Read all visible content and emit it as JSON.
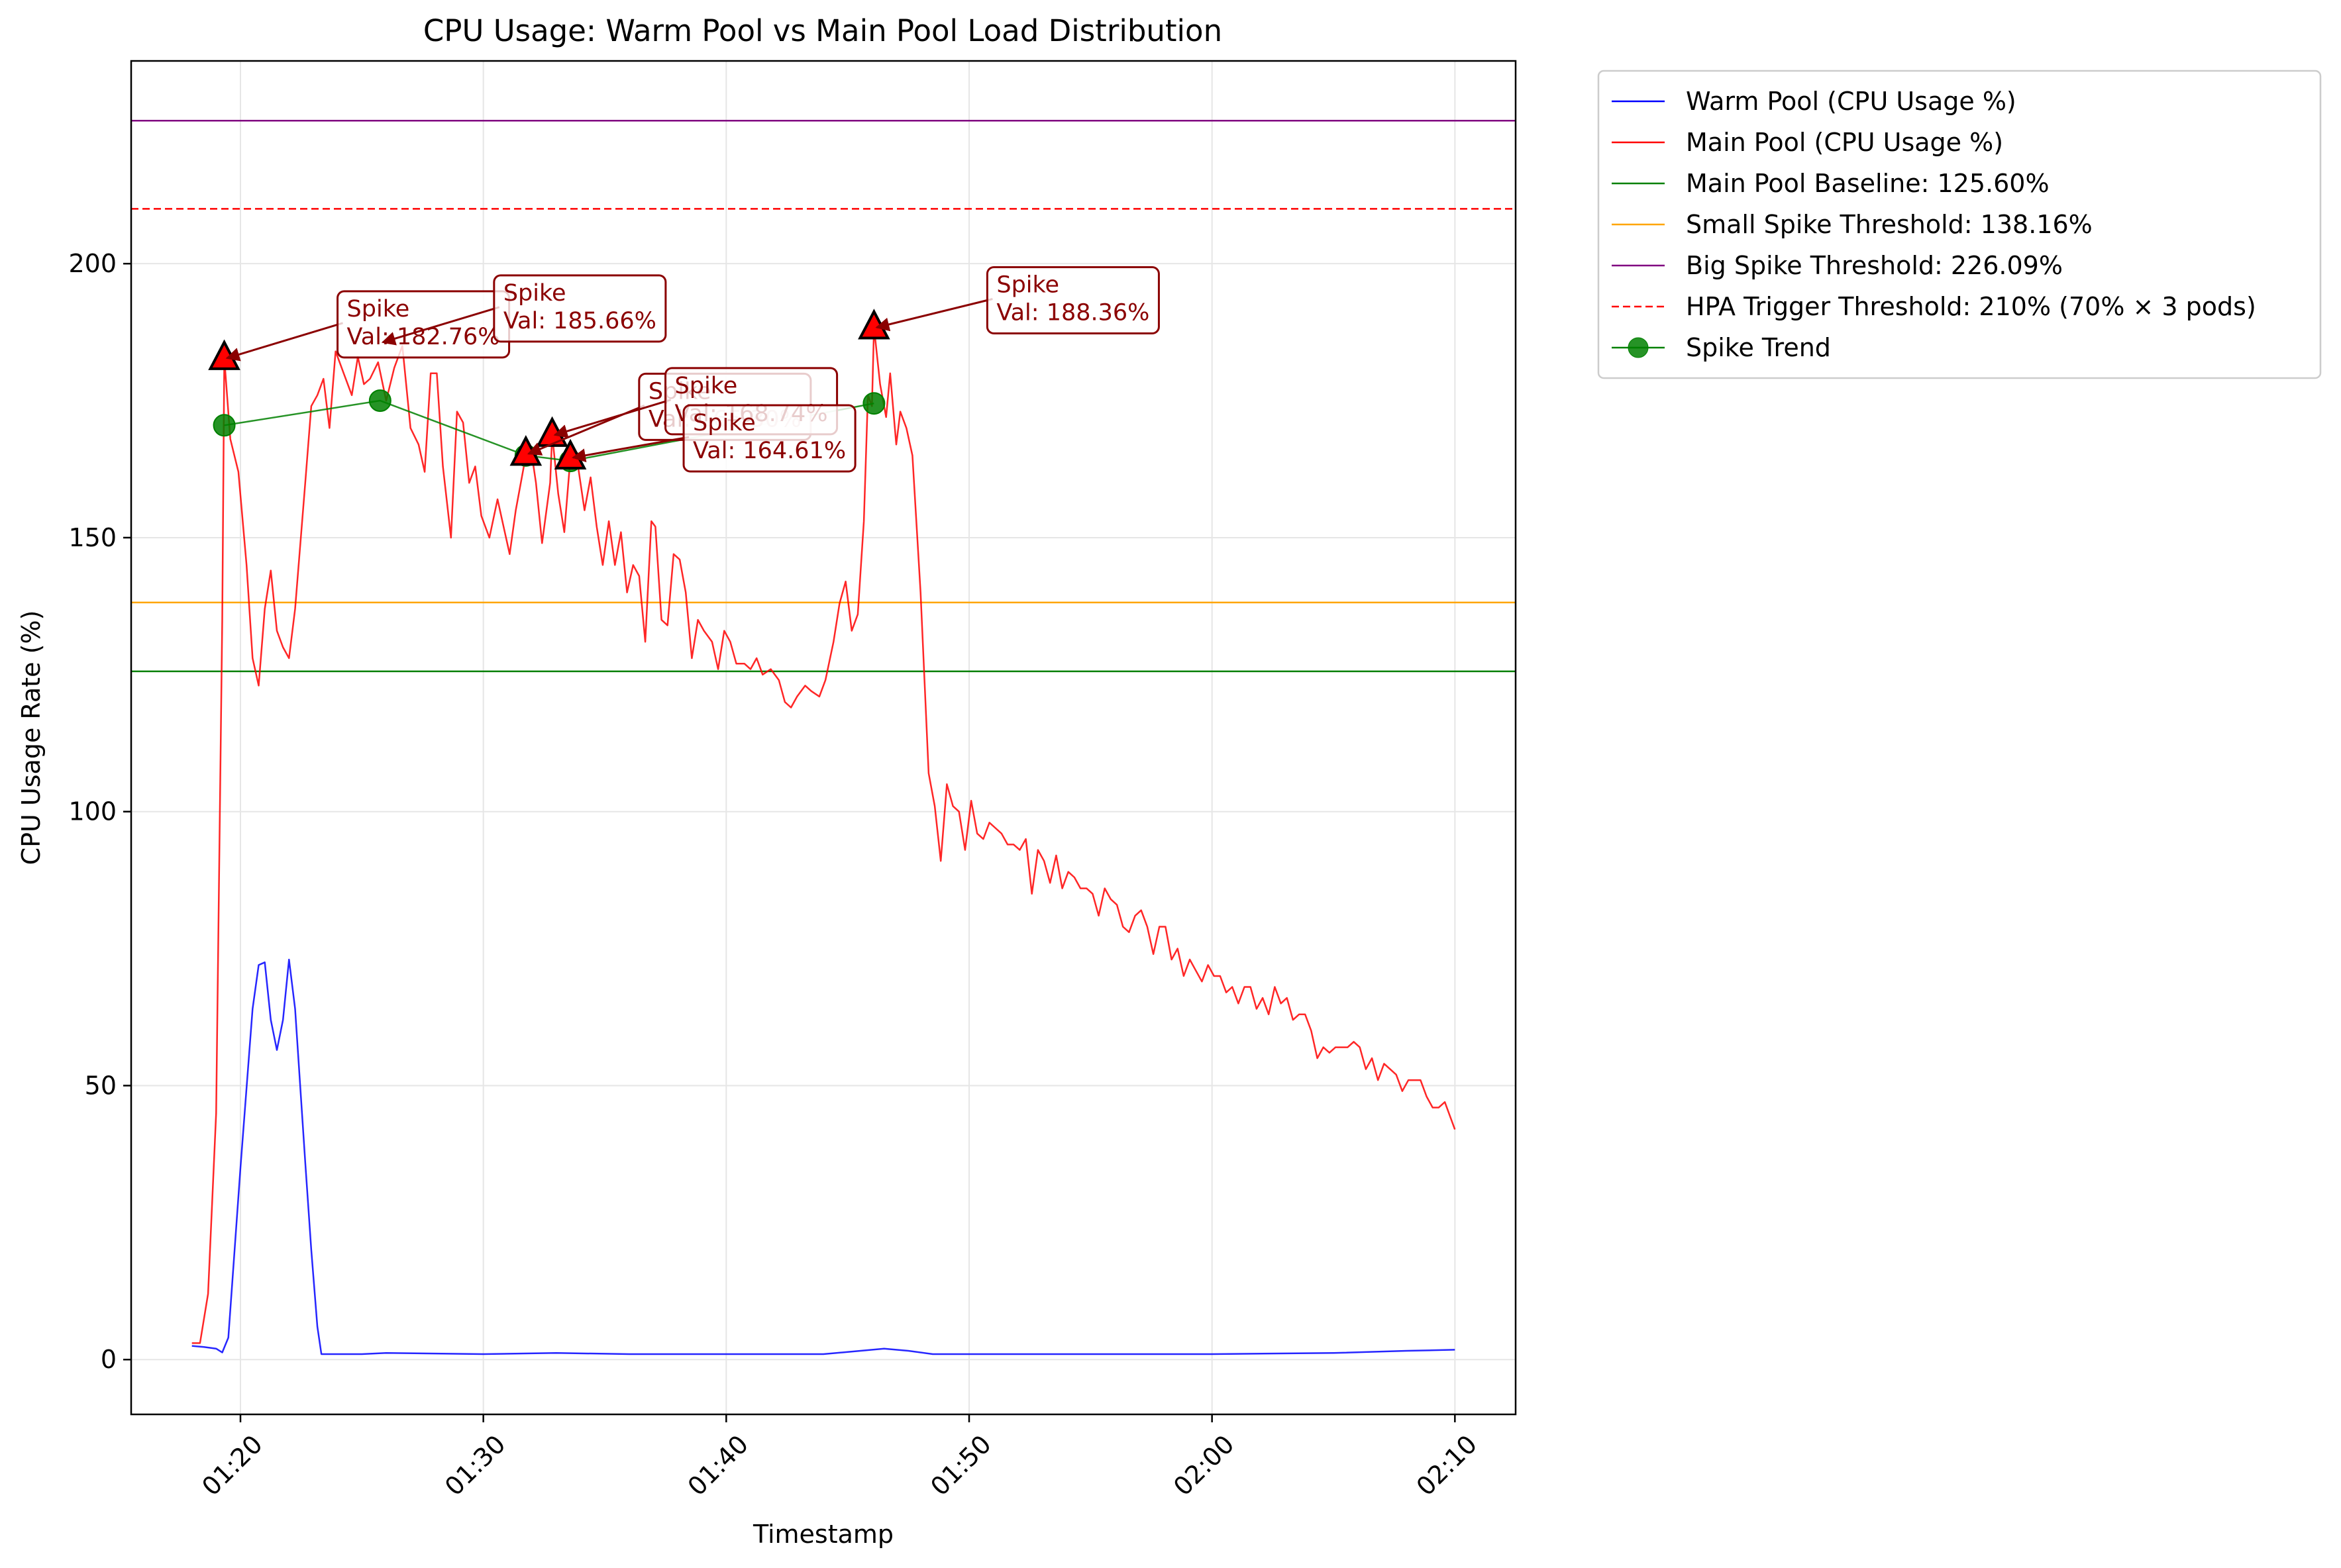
{
  "chart_data": {
    "type": "line",
    "title": "CPU Usage: Warm Pool vs Main Pool Load Distribution",
    "xlabel": "Timestamp",
    "ylabel": "CPU Usage Rate (%)",
    "xlim": [
      "01:15:30",
      "02:12:30"
    ],
    "ylim": [
      -10,
      237
    ],
    "x_ticks": [
      "01:20",
      "01:30",
      "01:40",
      "01:50",
      "02:00",
      "02:10"
    ],
    "y_ticks": [
      0,
      50,
      100,
      150,
      200
    ],
    "grid": true,
    "legend_position": "outside-top-right",
    "series": [
      {
        "name": "Warm Pool (CPU Usage %)",
        "color": "#0000ff",
        "style": "solid",
        "points": [
          [
            "01:18:00",
            2.5
          ],
          [
            "01:18:30",
            2.3
          ],
          [
            "01:19:00",
            2.0
          ],
          [
            "01:19:15",
            1.3
          ],
          [
            "01:19:30",
            4.0
          ],
          [
            "01:20:00",
            35
          ],
          [
            "01:20:30",
            64
          ],
          [
            "01:20:45",
            72
          ],
          [
            "01:21:00",
            72.5
          ],
          [
            "01:21:15",
            62
          ],
          [
            "01:21:30",
            56.5
          ],
          [
            "01:21:45",
            62
          ],
          [
            "01:22:00",
            73
          ],
          [
            "01:22:15",
            64
          ],
          [
            "01:22:40",
            36
          ],
          [
            "01:22:55",
            20
          ],
          [
            "01:23:10",
            6
          ],
          [
            "01:23:20",
            1
          ],
          [
            "01:25:00",
            1
          ],
          [
            "01:26:00",
            1.2
          ],
          [
            "01:30:00",
            1
          ],
          [
            "01:33:00",
            1.2
          ],
          [
            "01:36:00",
            1
          ],
          [
            "01:40:00",
            1
          ],
          [
            "01:44:00",
            1
          ],
          [
            "01:45:00",
            1.4
          ],
          [
            "01:46:30",
            2.0
          ],
          [
            "01:47:30",
            1.6
          ],
          [
            "01:48:30",
            1
          ],
          [
            "01:55:00",
            1
          ],
          [
            "02:00:00",
            1
          ],
          [
            "02:05:00",
            1.2
          ],
          [
            "02:08:00",
            1.6
          ],
          [
            "02:10:00",
            1.8
          ]
        ]
      },
      {
        "name": "Main Pool (CPU Usage %)",
        "color": "#ff0000",
        "style": "solid",
        "points": [
          [
            "01:18:00",
            3
          ],
          [
            "01:18:20",
            3
          ],
          [
            "01:18:40",
            12
          ],
          [
            "01:19:00",
            45
          ],
          [
            "01:19:15",
            135
          ],
          [
            "01:19:20",
            182.76
          ],
          [
            "01:19:35",
            168
          ],
          [
            "01:19:55",
            162
          ],
          [
            "01:20:15",
            145
          ],
          [
            "01:20:30",
            128
          ],
          [
            "01:20:45",
            123
          ],
          [
            "01:21:00",
            137
          ],
          [
            "01:21:15",
            144
          ],
          [
            "01:21:30",
            133
          ],
          [
            "01:21:45",
            130
          ],
          [
            "01:22:00",
            128
          ],
          [
            "01:22:15",
            137
          ],
          [
            "01:22:40",
            160
          ],
          [
            "01:22:55",
            174
          ],
          [
            "01:23:10",
            176
          ],
          [
            "01:23:25",
            179
          ],
          [
            "01:23:40",
            170
          ],
          [
            "01:23:55",
            184
          ],
          [
            "01:24:15",
            180
          ],
          [
            "01:24:35",
            176
          ],
          [
            "01:24:50",
            183
          ],
          [
            "01:25:05",
            178
          ],
          [
            "01:25:20",
            179
          ],
          [
            "01:25:40",
            182
          ],
          [
            "01:26:00",
            175
          ],
          [
            "01:26:20",
            181
          ],
          [
            "01:26:40",
            185
          ],
          [
            "01:27:00",
            170
          ],
          [
            "01:27:20",
            167
          ],
          [
            "01:27:35",
            162
          ],
          [
            "01:27:50",
            180
          ],
          [
            "01:28:05",
            180
          ],
          [
            "01:28:20",
            163
          ],
          [
            "01:28:40",
            150
          ],
          [
            "01:28:55",
            173
          ],
          [
            "01:29:10",
            171
          ],
          [
            "01:29:25",
            160
          ],
          [
            "01:29:40",
            163
          ],
          [
            "01:29:55",
            154
          ],
          [
            "01:30:15",
            150
          ],
          [
            "01:30:35",
            157
          ],
          [
            "01:30:50",
            152
          ],
          [
            "01:31:05",
            147
          ],
          [
            "01:31:20",
            155
          ],
          [
            "01:31:40",
            163
          ],
          [
            "01:32:00",
            165
          ],
          [
            "01:32:10",
            160
          ],
          [
            "01:32:25",
            149
          ],
          [
            "01:32:45",
            160
          ],
          [
            "01:32:50",
            168.74
          ],
          [
            "01:33:05",
            158
          ],
          [
            "01:33:20",
            151
          ],
          [
            "01:33:35",
            164.61
          ],
          [
            "01:33:50",
            165
          ],
          [
            "01:34:10",
            155
          ],
          [
            "01:34:25",
            161
          ],
          [
            "01:34:40",
            152
          ],
          [
            "01:34:55",
            145
          ],
          [
            "01:35:10",
            153
          ],
          [
            "01:35:25",
            145
          ],
          [
            "01:35:40",
            151
          ],
          [
            "01:35:55",
            140
          ],
          [
            "01:36:10",
            145
          ],
          [
            "01:36:25",
            143
          ],
          [
            "01:36:40",
            131
          ],
          [
            "01:36:55",
            153
          ],
          [
            "01:37:05",
            152
          ],
          [
            "01:37:20",
            135
          ],
          [
            "01:37:35",
            134
          ],
          [
            "01:37:50",
            147
          ],
          [
            "01:38:05",
            146
          ],
          [
            "01:38:20",
            140
          ],
          [
            "01:38:35",
            128
          ],
          [
            "01:38:50",
            135
          ],
          [
            "01:39:05",
            133
          ],
          [
            "01:39:25",
            131
          ],
          [
            "01:39:40",
            126
          ],
          [
            "01:39:55",
            133
          ],
          [
            "01:40:10",
            131
          ],
          [
            "01:40:25",
            127
          ],
          [
            "01:40:45",
            127
          ],
          [
            "01:41:00",
            126
          ],
          [
            "01:41:15",
            128
          ],
          [
            "01:41:30",
            125
          ],
          [
            "01:41:50",
            126
          ],
          [
            "01:42:10",
            124
          ],
          [
            "01:42:25",
            120
          ],
          [
            "01:42:40",
            119
          ],
          [
            "01:42:55",
            121
          ],
          [
            "01:43:15",
            123
          ],
          [
            "01:43:30",
            122
          ],
          [
            "01:43:50",
            121
          ],
          [
            "01:44:05",
            124
          ],
          [
            "01:44:25",
            131
          ],
          [
            "01:44:40",
            138
          ],
          [
            "01:44:55",
            142
          ],
          [
            "01:45:10",
            133
          ],
          [
            "01:45:25",
            136
          ],
          [
            "01:45:40",
            153
          ],
          [
            "01:45:50",
            176
          ],
          [
            "01:46:00",
            174
          ],
          [
            "01:46:05",
            188.36
          ],
          [
            "01:46:20",
            178
          ],
          [
            "01:46:35",
            172
          ],
          [
            "01:46:45",
            180
          ],
          [
            "01:47:00",
            167
          ],
          [
            "01:47:10",
            173
          ],
          [
            "01:47:25",
            170
          ],
          [
            "01:47:40",
            165
          ],
          [
            "01:48:00",
            140
          ],
          [
            "01:48:20",
            107
          ],
          [
            "01:48:35",
            101
          ],
          [
            "01:48:50",
            91
          ],
          [
            "01:49:05",
            105
          ],
          [
            "01:49:20",
            101
          ],
          [
            "01:49:35",
            100
          ],
          [
            "01:49:50",
            93
          ],
          [
            "01:50:05",
            102
          ],
          [
            "01:50:20",
            96
          ],
          [
            "01:50:35",
            95
          ],
          [
            "01:50:50",
            98
          ],
          [
            "01:51:05",
            97
          ],
          [
            "01:51:20",
            96
          ],
          [
            "01:51:35",
            94
          ],
          [
            "01:51:50",
            94
          ],
          [
            "01:52:05",
            93
          ],
          [
            "01:52:20",
            95
          ],
          [
            "01:52:35",
            85
          ],
          [
            "01:52:50",
            93
          ],
          [
            "01:53:05",
            91
          ],
          [
            "01:53:20",
            87
          ],
          [
            "01:53:35",
            92
          ],
          [
            "01:53:50",
            86
          ],
          [
            "01:54:05",
            89
          ],
          [
            "01:54:20",
            88
          ],
          [
            "01:54:35",
            86
          ],
          [
            "01:54:50",
            86
          ],
          [
            "01:55:05",
            85
          ],
          [
            "01:55:20",
            81
          ],
          [
            "01:55:35",
            86
          ],
          [
            "01:55:50",
            84
          ],
          [
            "01:56:05",
            83
          ],
          [
            "01:56:20",
            79
          ],
          [
            "01:56:35",
            78
          ],
          [
            "01:56:50",
            81
          ],
          [
            "01:57:05",
            82
          ],
          [
            "01:57:20",
            79
          ],
          [
            "01:57:35",
            74
          ],
          [
            "01:57:50",
            79
          ],
          [
            "01:58:05",
            79
          ],
          [
            "01:58:20",
            73
          ],
          [
            "01:58:35",
            75
          ],
          [
            "01:58:50",
            70
          ],
          [
            "01:59:05",
            73
          ],
          [
            "01:59:20",
            71
          ],
          [
            "01:59:35",
            69
          ],
          [
            "01:59:50",
            72
          ],
          [
            "02:00:05",
            70
          ],
          [
            "02:00:20",
            70
          ],
          [
            "02:00:35",
            67
          ],
          [
            "02:00:50",
            68
          ],
          [
            "02:01:05",
            65
          ],
          [
            "02:01:20",
            68
          ],
          [
            "02:01:35",
            68
          ],
          [
            "02:01:50",
            64
          ],
          [
            "02:02:05",
            66
          ],
          [
            "02:02:20",
            63
          ],
          [
            "02:02:35",
            68
          ],
          [
            "02:02:50",
            65
          ],
          [
            "02:03:05",
            66
          ],
          [
            "02:03:20",
            62
          ],
          [
            "02:03:35",
            63
          ],
          [
            "02:03:50",
            63
          ],
          [
            "02:04:05",
            60
          ],
          [
            "02:04:20",
            55
          ],
          [
            "02:04:35",
            57
          ],
          [
            "02:04:50",
            56
          ],
          [
            "02:05:05",
            57
          ],
          [
            "02:05:20",
            57
          ],
          [
            "02:05:35",
            57
          ],
          [
            "02:05:50",
            58
          ],
          [
            "02:06:05",
            57
          ],
          [
            "02:06:20",
            53
          ],
          [
            "02:06:35",
            55
          ],
          [
            "02:06:50",
            51
          ],
          [
            "02:07:05",
            54
          ],
          [
            "02:07:20",
            53
          ],
          [
            "02:07:35",
            52
          ],
          [
            "02:07:50",
            49
          ],
          [
            "02:08:05",
            51
          ],
          [
            "02:08:20",
            51
          ],
          [
            "02:08:35",
            51
          ],
          [
            "02:08:50",
            48
          ],
          [
            "02:09:05",
            46
          ],
          [
            "02:09:20",
            46
          ],
          [
            "02:09:35",
            47
          ],
          [
            "02:09:50",
            44
          ],
          [
            "02:10:00",
            42
          ]
        ]
      }
    ],
    "reference_lines": [
      {
        "name": "Main Pool Baseline: 125.60%",
        "y": 125.6,
        "color": "#008000",
        "style": "solid"
      },
      {
        "name": "Small Spike Threshold: 138.16%",
        "y": 138.16,
        "color": "#ffa500",
        "style": "solid"
      },
      {
        "name": "Big Spike Threshold: 226.09%",
        "y": 226.09,
        "color": "#800080",
        "style": "solid"
      },
      {
        "name": "HPA Trigger Threshold: 210% (70% × 3 pods)",
        "y": 210,
        "color": "#ff0000",
        "style": "dashed"
      }
    ],
    "spike_trend": {
      "name": "Spike Trend",
      "color": "#008000",
      "points": [
        [
          "01:19:20",
          170.5
        ],
        [
          "01:25:45",
          175
        ],
        [
          "01:31:45",
          165
        ],
        [
          "01:33:35",
          164
        ],
        [
          "01:46:05",
          174.5
        ]
      ]
    },
    "spike_markers": [
      {
        "x": "01:19:20",
        "y": 182.76
      },
      {
        "x": "01:31:45",
        "y": 165.3
      },
      {
        "x": "01:32:50",
        "y": 168.74
      },
      {
        "x": "01:33:35",
        "y": 164.61
      },
      {
        "x": "01:46:05",
        "y": 188.36
      }
    ],
    "annotations": [
      {
        "line1": "Spike",
        "line2": "Val: 182.76%",
        "target_x": "01:19:20",
        "target_y": 182.76
      },
      {
        "line1": "Spike",
        "line2": "Val: 185.66%",
        "target_x": "01:25:45",
        "target_y": 185.66
      },
      {
        "line1": "Spike",
        "line2": "Val: 165.30%",
        "target_x": "01:31:45",
        "target_y": 165.3
      },
      {
        "line1": "Spike",
        "line2": "Val: 168.74%",
        "target_x": "01:32:50",
        "target_y": 168.74
      },
      {
        "line1": "Spike",
        "line2": "Val: 164.61%",
        "target_x": "01:33:35",
        "target_y": 164.61
      },
      {
        "line1": "Spike",
        "line2": "Val: 188.36%",
        "target_x": "01:46:05",
        "target_y": 188.36
      }
    ]
  }
}
